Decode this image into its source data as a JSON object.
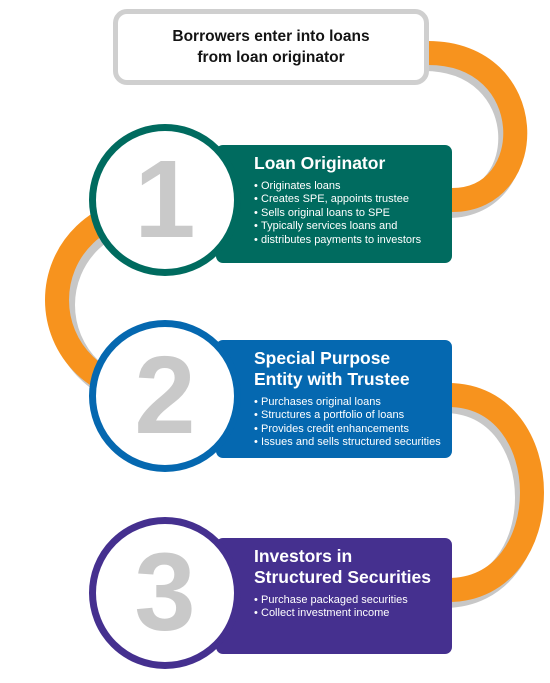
{
  "header": {
    "line1": "Borrowers enter into loans",
    "line2": "from loan originator"
  },
  "colors": {
    "connector": "#f7931e",
    "connector_shadow": "#c7c7c7",
    "step1": "#006b5f",
    "step2": "#0568b0",
    "step3": "#45308f",
    "number": "#c9c9c9"
  },
  "steps": [
    {
      "number": "1",
      "title_lines": [
        "Loan Originator"
      ],
      "bullets": [
        "Originates loans",
        "Creates SPE, appoints trustee",
        "Sells original loans to SPE",
        "Typically services loans and",
        "distributes payments to investors"
      ]
    },
    {
      "number": "2",
      "title_lines": [
        "Special Purpose",
        "Entity with Trustee"
      ],
      "bullets": [
        "Purchases original loans",
        "Structures a portfolio of loans",
        "Provides credit enhancements",
        "Issues and sells structured securities"
      ]
    },
    {
      "number": "3",
      "title_lines": [
        "Investors in",
        "Structured Securities"
      ],
      "bullets": [
        "Purchase packaged securities",
        "Collect investment income"
      ]
    }
  ]
}
